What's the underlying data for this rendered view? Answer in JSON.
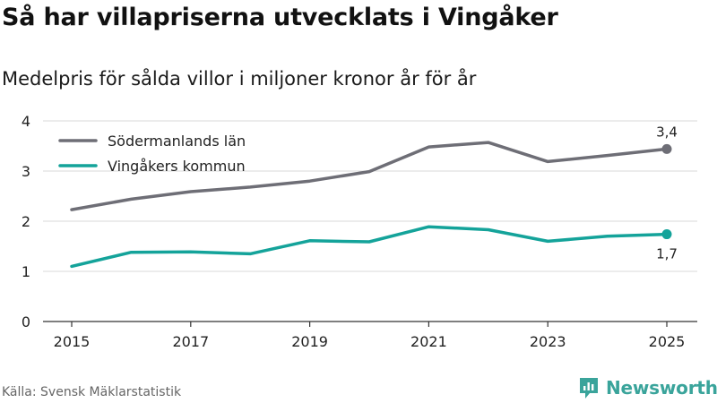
{
  "header": {
    "title": "Så har villapriserna utvecklats i Vingåker",
    "subtitle": "Medelpris för sålda villor i miljoner kronor år för år"
  },
  "footer": {
    "source": "Källa: Svensk Mäklarstatistik",
    "brand": "Newsworthy",
    "brand_color": "#3aa49b"
  },
  "chart_data": {
    "type": "line",
    "title": "Så har villapriserna utvecklats i Vingåker",
    "subtitle": "Medelpris för sålda villor i miljoner kronor år för år",
    "xlabel": "",
    "ylabel": "",
    "x": [
      2015,
      2016,
      2017,
      2018,
      2019,
      2020,
      2021,
      2022,
      2023,
      2024,
      2025
    ],
    "x_ticks": [
      "2015",
      "2017",
      "2019",
      "2021",
      "2023",
      "2025"
    ],
    "y_ticks": [
      "0",
      "1",
      "2",
      "3",
      "4"
    ],
    "xlim": [
      2015,
      2025
    ],
    "ylim": [
      0,
      4
    ],
    "grid": true,
    "legend_position": "top-left",
    "series": [
      {
        "name": "Södermanlands län",
        "color": "#6e6e76",
        "values": [
          2.23,
          2.44,
          2.59,
          2.68,
          2.8,
          2.99,
          3.48,
          3.57,
          3.19,
          3.31,
          3.44
        ],
        "end_label": "3,4",
        "end_label_position": "above"
      },
      {
        "name": "Vingåkers kommun",
        "color": "#14a39a",
        "values": [
          1.1,
          1.38,
          1.39,
          1.35,
          1.61,
          1.59,
          1.89,
          1.83,
          1.6,
          1.7,
          1.74
        ],
        "end_label": "1,7",
        "end_label_position": "below"
      }
    ]
  }
}
